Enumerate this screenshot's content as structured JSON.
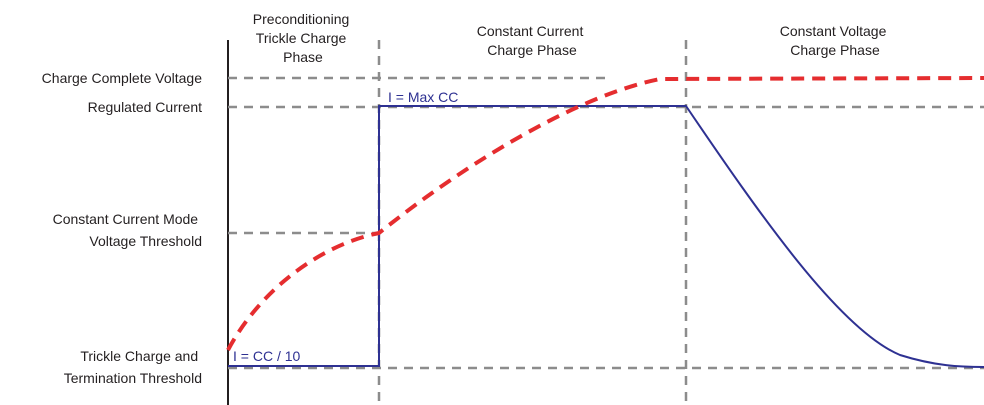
{
  "phases": [
    {
      "id": "preconditioning",
      "lines": [
        "Preconditioning",
        "Trickle Charge",
        "Phase"
      ]
    },
    {
      "id": "constant-current",
      "lines": [
        "Constant Current",
        "Charge Phase"
      ]
    },
    {
      "id": "constant-voltage",
      "lines": [
        "Constant  Voltage",
        "Charge Phase"
      ]
    }
  ],
  "levels": [
    {
      "id": "charge-complete-voltage",
      "lines": [
        "Charge Complete Voltage"
      ]
    },
    {
      "id": "regulated-current",
      "lines": [
        "Regulated Current"
      ]
    },
    {
      "id": "cc-mode-voltage-threshold",
      "lines": [
        "Constant Current Mode",
        "Voltage Threshold"
      ]
    },
    {
      "id": "trickle-termination-threshold",
      "lines": [
        "Trickle Charge and",
        "Termination Threshold"
      ]
    }
  ],
  "annotations": {
    "max_cc": "I = Max CC",
    "trickle_cc": "I = CC / 10"
  },
  "colors": {
    "voltage_curve": "#e52d2f",
    "current_curve": "#2e3192",
    "guide_lines": "#8c8c8c",
    "axis": "#231f20",
    "text": "#231f20"
  }
}
